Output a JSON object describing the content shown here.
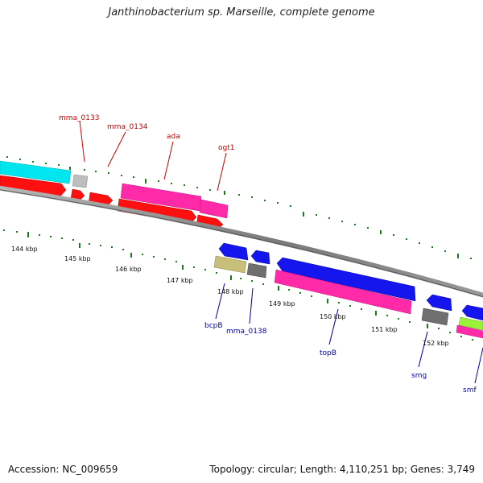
{
  "title": "Janthinobacterium sp. Marseille, complete genome",
  "footer": {
    "accession": "Accession: NC_009659",
    "summary": "Topology: circular; Length: 4,110,251 bp; Genes: 3,749"
  },
  "colors": {
    "forward_label": "#cc0000",
    "reverse_label": "#0000aa",
    "tick": "#1a7a1a",
    "backbone": "#8a8a8a"
  },
  "ticks": [
    "144 kbp",
    "145 kbp",
    "146 kbp",
    "147 kbp",
    "148 kbp",
    "149 kbp",
    "150 kbp",
    "151 kbp",
    "152 kbp"
  ],
  "forward_labels": [
    "mma_0133",
    "mma_0134",
    "ada",
    "ogt1"
  ],
  "reverse_labels": [
    "bcpB",
    "mma_0138",
    "topB",
    "smg",
    "smf"
  ]
}
